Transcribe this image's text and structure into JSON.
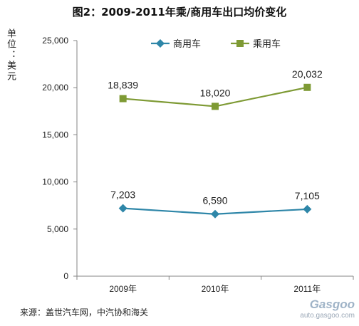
{
  "chart_data": {
    "type": "line",
    "title": "图2：2009-2011年乘/商用车出口均价变化",
    "ylabel": "单位：美元",
    "categories": [
      "2009年",
      "2010年",
      "2011年"
    ],
    "ylim": [
      0,
      25000
    ],
    "yticks": [
      0,
      5000,
      10000,
      15000,
      20000,
      25000
    ],
    "ytick_labels": [
      "0",
      "5,000",
      "10,000",
      "15,000",
      "20,000",
      "25,000"
    ],
    "grid": false,
    "legend_position": "top-right",
    "series": [
      {
        "name": "商用车",
        "values": [
          7203,
          6590,
          7105
        ],
        "labels": [
          "7,203",
          "6,590",
          "7,105"
        ],
        "color": "#2e86a8",
        "marker": "diamond"
      },
      {
        "name": "乘用车",
        "values": [
          18839,
          18020,
          20032
        ],
        "labels": [
          "18,839",
          "18,020",
          "20,032"
        ],
        "color": "#7e9a34",
        "marker": "square"
      }
    ]
  },
  "source": "来源：盖世汽车网，中汽协和海关",
  "logo": {
    "main": "Gasgoo",
    "url": "auto.gasgoo.com"
  }
}
